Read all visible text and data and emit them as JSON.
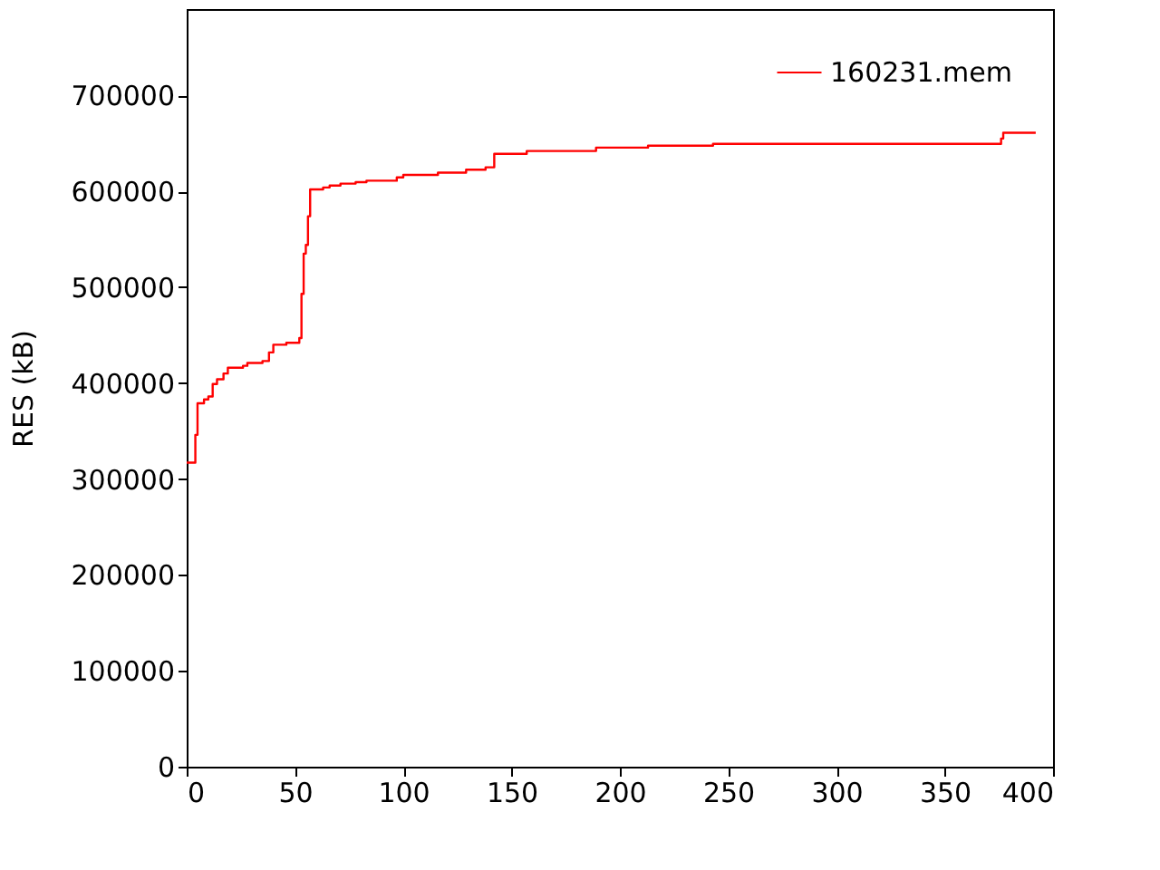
{
  "chart_data": {
    "type": "step",
    "ylabel": "RES (kB)",
    "xlim": [
      0,
      400
    ],
    "xticks": [
      0,
      50,
      100,
      150,
      200,
      250,
      300,
      350,
      400
    ],
    "ylim": [
      0,
      790000
    ],
    "yticks": [
      0,
      100000,
      200000,
      300000,
      400000,
      500000,
      600000,
      700000
    ],
    "grid": false,
    "legend": "top right",
    "series": [
      {
        "name": "160231.mem",
        "color": "#ff0000",
        "x": [
          0,
          4,
          5,
          8,
          10,
          12,
          14,
          17,
          19,
          26,
          28,
          35,
          38,
          40,
          46,
          52,
          53,
          54,
          55,
          56,
          57,
          63,
          66,
          71,
          78,
          83,
          97,
          100,
          116,
          129,
          138,
          142,
          157,
          189,
          213,
          243,
          376,
          377,
          392
        ],
        "values": [
          317000,
          346000,
          379000,
          383000,
          386000,
          399000,
          404000,
          410000,
          416000,
          418000,
          421000,
          423000,
          432000,
          440000,
          442000,
          447000,
          493000,
          535000,
          544000,
          574000,
          602000,
          604000,
          606000,
          608000,
          609500,
          611000,
          614500,
          617000,
          619500,
          622500,
          625000,
          639000,
          642000,
          645500,
          647500,
          649500,
          655000,
          661000,
          661000
        ]
      }
    ]
  }
}
